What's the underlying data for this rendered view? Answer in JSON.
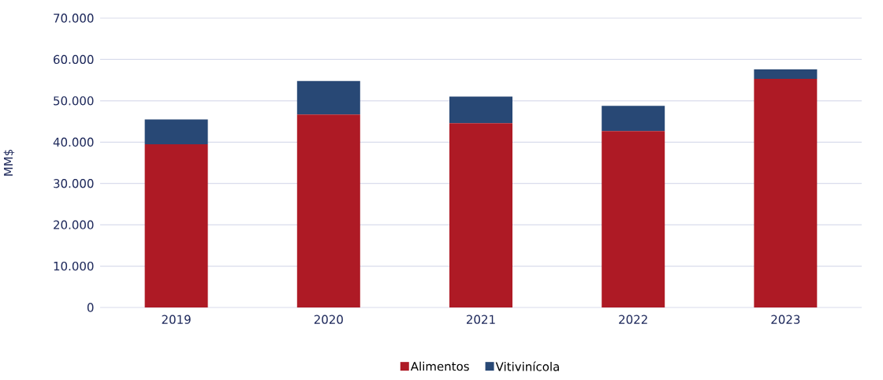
{
  "chart_data": {
    "type": "bar",
    "stacked": true,
    "ylabel": "MM$",
    "categories": [
      "2019",
      "2020",
      "2021",
      "2022",
      "2023"
    ],
    "series": [
      {
        "name": "Alimentos",
        "color": "#ae1a25",
        "values": [
          39500,
          46700,
          44600,
          42700,
          55300
        ]
      },
      {
        "name": "Vitivinícola",
        "color": "#284875",
        "values": [
          6000,
          8100,
          6400,
          6100,
          2300
        ]
      }
    ],
    "ylim": [
      0,
      70000
    ],
    "yticks": [
      {
        "value": 0,
        "label": "0"
      },
      {
        "value": 10000,
        "label": "10.000"
      },
      {
        "value": 20000,
        "label": "20.000"
      },
      {
        "value": 30000,
        "label": "30.000"
      },
      {
        "value": 40000,
        "label": "40.000"
      },
      {
        "value": 50000,
        "label": "50.000"
      },
      {
        "value": 60000,
        "label": "60.000"
      },
      {
        "value": 70000,
        "label": "70.000"
      }
    ],
    "grid": "y",
    "legend": "bottom"
  }
}
